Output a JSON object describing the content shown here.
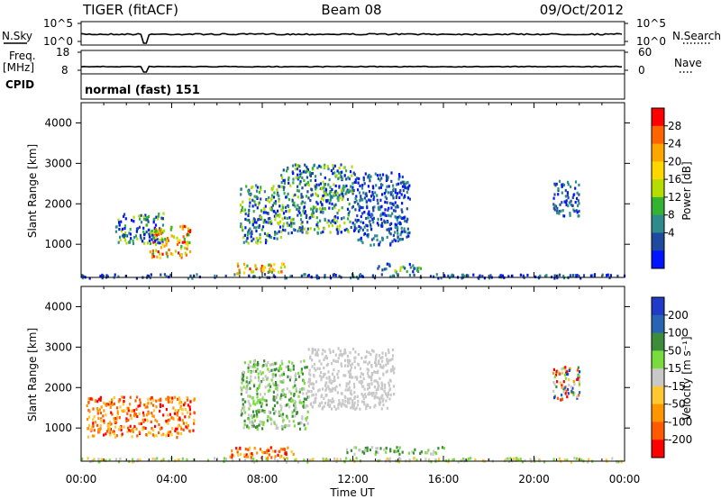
{
  "header": {
    "title": "TIGER (fitACF)",
    "beam": "Beam 08",
    "date": "09/Oct/2012"
  },
  "top_panels": {
    "nsky_label": "N.Sky",
    "nsearch_label": "N.Search",
    "noise_ticks_left": [
      "10^5",
      "10^0"
    ],
    "noise_ticks_right": [
      "10^5",
      "10^0"
    ],
    "freq_label": "Freq.",
    "freq_unit": "[MHz]",
    "freq_ticks": [
      "18",
      "8"
    ],
    "nave_label": "Nave",
    "nave_ticks": [
      "60",
      "0"
    ],
    "cpid_label": "CPID",
    "cpid_value": "normal (fast) 151"
  },
  "chart_data": [
    {
      "type": "heatmap",
      "panel": "power",
      "ylabel": "Slant Range [km]",
      "yticks": [
        "4000",
        "3000",
        "2000",
        "1000"
      ],
      "ylim": [
        180,
        4500
      ],
      "xlim": [
        0,
        24
      ],
      "colorbar": {
        "label": "Power [dB]",
        "ticks": [
          "28",
          "24",
          "20",
          "16",
          "12",
          "8",
          "4"
        ],
        "colors": [
          "#ff0000",
          "#ff6400",
          "#ffa500",
          "#ffd700",
          "#b4dc00",
          "#32b432",
          "#2e8b8b",
          "#1e4ba0",
          "#0014ff"
        ]
      },
      "echo_regions": [
        {
          "t0": 0.0,
          "t1": 24.0,
          "r0": 190,
          "r1": 290,
          "level": "low"
        },
        {
          "t0": 1.5,
          "t1": 3.6,
          "r0": 1050,
          "r1": 1800,
          "level": "mid"
        },
        {
          "t0": 3.0,
          "t1": 4.8,
          "r0": 700,
          "r1": 1500,
          "level": "high"
        },
        {
          "t0": 6.7,
          "t1": 9.0,
          "r0": 300,
          "r1": 550,
          "level": "high"
        },
        {
          "t0": 7.0,
          "t1": 8.8,
          "r0": 1050,
          "r1": 2500,
          "level": "mid"
        },
        {
          "t0": 8.8,
          "t1": 12.0,
          "r0": 1300,
          "r1": 3000,
          "level": "mid"
        },
        {
          "t0": 12.0,
          "t1": 14.5,
          "r0": 1000,
          "r1": 2800,
          "level": "low"
        },
        {
          "t0": 13.0,
          "t1": 15.0,
          "r0": 350,
          "r1": 550,
          "level": "mid"
        },
        {
          "t0": 20.8,
          "t1": 22.0,
          "r0": 1700,
          "r1": 2600,
          "level": "low"
        }
      ]
    },
    {
      "type": "heatmap",
      "panel": "velocity",
      "ylabel": "Slant Range [km]",
      "yticks": [
        "4000",
        "3000",
        "2000",
        "1000"
      ],
      "ylim": [
        180,
        4500
      ],
      "xlim": [
        0,
        24
      ],
      "xticks": [
        "00:00",
        "04:00",
        "08:00",
        "12:00",
        "16:00",
        "20:00",
        "00:00"
      ],
      "xlabel": "Time UT",
      "colorbar": {
        "label": "Velocity [m s⁻¹]",
        "ticks": [
          "200",
          "100",
          "50",
          "15",
          "-15",
          "-50",
          "-100",
          "-200"
        ],
        "colors": [
          "#1e3cc8",
          "#2864b4",
          "#3c8c3c",
          "#78dc3c",
          "#c8c8c8",
          "#ffc832",
          "#ff9600",
          "#ff5a00",
          "#ff0000"
        ]
      },
      "echo_regions": [
        {
          "t0": 0.0,
          "t1": 24.0,
          "r0": 190,
          "r1": 290,
          "level": "slow"
        },
        {
          "t0": 0.2,
          "t1": 5.0,
          "r0": 800,
          "r1": 1800,
          "level": "away"
        },
        {
          "t0": 6.5,
          "t1": 9.5,
          "r0": 280,
          "r1": 560,
          "level": "away"
        },
        {
          "t0": 7.0,
          "t1": 10.0,
          "r0": 1000,
          "r1": 2700,
          "level": "toward"
        },
        {
          "t0": 10.0,
          "t1": 13.8,
          "r0": 1500,
          "r1": 3000,
          "level": "zero"
        },
        {
          "t0": 11.5,
          "t1": 16.0,
          "r0": 380,
          "r1": 560,
          "level": "toward"
        },
        {
          "t0": 20.8,
          "t1": 22.0,
          "r0": 1700,
          "r1": 2600,
          "level": "mixed"
        }
      ]
    }
  ]
}
